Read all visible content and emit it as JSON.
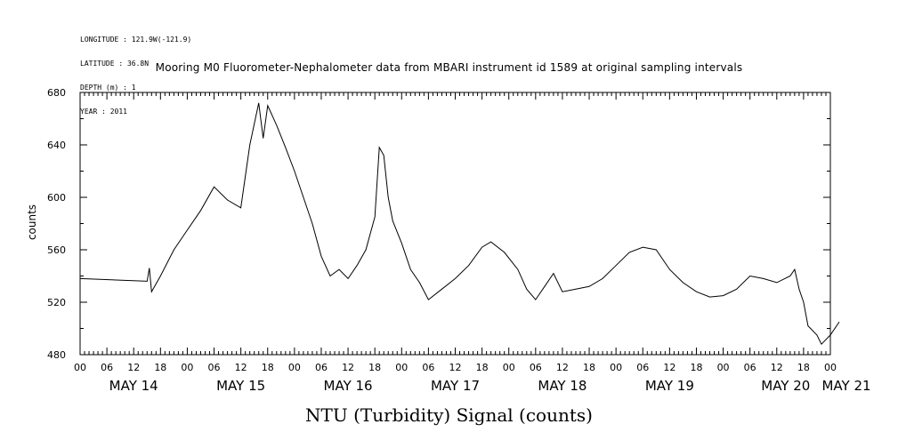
{
  "metadata": {
    "longitude": "LONGITUDE : 121.9W(-121.9)",
    "latitude": "LATITUDE : 36.8N",
    "depth": "DEPTH (m) : 1",
    "year": "YEAR : 2011"
  },
  "footer_label": "NTU (Turbidity) Signal (counts)",
  "chart_data": {
    "type": "line",
    "title": "Mooring M0 Fluorometer-Nephalometer data from MBARI instrument id 1589 at original sampling intervals",
    "xlabel": "",
    "ylabel": "counts",
    "ylim": [
      480,
      680
    ],
    "xlim": [
      "2011-05-14 00:00",
      "2011-05-21 00:00"
    ],
    "y_ticks": [
      "480",
      "520",
      "560",
      "600",
      "640",
      "680"
    ],
    "x_hour_ticks": [
      "00",
      "06",
      "12",
      "18",
      "00",
      "06",
      "12",
      "18",
      "00",
      "06",
      "12",
      "18",
      "00",
      "06",
      "12",
      "18",
      "00",
      "06",
      "12",
      "18",
      "00",
      "06",
      "12",
      "18",
      "00",
      "06",
      "12",
      "18",
      "00"
    ],
    "x_day_labels": [
      "MAY 14",
      "MAY 15",
      "MAY 16",
      "MAY 17",
      "MAY 18",
      "MAY 19",
      "MAY 20",
      "MAY 21"
    ],
    "grid": false,
    "series": [
      {
        "color": "#000000",
        "points": [
          [
            "2011-05-14 00:00",
            538
          ],
          [
            "2011-05-14 15:00",
            536
          ],
          [
            "2011-05-14 15:30",
            546
          ],
          [
            "2011-05-14 16:00",
            528
          ],
          [
            "2011-05-14 18:00",
            540
          ],
          [
            "2011-05-14 21:00",
            560
          ],
          [
            "2011-05-15 00:00",
            575
          ],
          [
            "2011-05-15 03:00",
            590
          ],
          [
            "2011-05-15 06:00",
            608
          ],
          [
            "2011-05-15 09:00",
            598
          ],
          [
            "2011-05-15 12:00",
            592
          ],
          [
            "2011-05-15 14:00",
            640
          ],
          [
            "2011-05-15 16:00",
            672
          ],
          [
            "2011-05-15 17:00",
            645
          ],
          [
            "2011-05-15 18:00",
            670
          ],
          [
            "2011-05-15 20:00",
            655
          ],
          [
            "2011-05-15 22:00",
            638
          ],
          [
            "2011-05-16 00:00",
            620
          ],
          [
            "2011-05-16 02:00",
            600
          ],
          [
            "2011-05-16 04:00",
            580
          ],
          [
            "2011-05-16 06:00",
            555
          ],
          [
            "2011-05-16 08:00",
            540
          ],
          [
            "2011-05-16 10:00",
            545
          ],
          [
            "2011-05-16 12:00",
            538
          ],
          [
            "2011-05-16 14:00",
            548
          ],
          [
            "2011-05-16 16:00",
            560
          ],
          [
            "2011-05-16 18:00",
            585
          ],
          [
            "2011-05-16 19:00",
            638
          ],
          [
            "2011-05-16 20:00",
            632
          ],
          [
            "2011-05-16 21:00",
            600
          ],
          [
            "2011-05-16 22:00",
            582
          ],
          [
            "2011-05-17 00:00",
            565
          ],
          [
            "2011-05-17 02:00",
            545
          ],
          [
            "2011-05-17 04:00",
            535
          ],
          [
            "2011-05-17 06:00",
            522
          ],
          [
            "2011-05-17 09:00",
            530
          ],
          [
            "2011-05-17 12:00",
            538
          ],
          [
            "2011-05-17 15:00",
            548
          ],
          [
            "2011-05-17 18:00",
            562
          ],
          [
            "2011-05-17 20:00",
            566
          ],
          [
            "2011-05-17 23:00",
            558
          ],
          [
            "2011-05-18 02:00",
            545
          ],
          [
            "2011-05-18 04:00",
            530
          ],
          [
            "2011-05-18 06:00",
            522
          ],
          [
            "2011-05-18 08:00",
            532
          ],
          [
            "2011-05-18 10:00",
            542
          ],
          [
            "2011-05-18 12:00",
            528
          ],
          [
            "2011-05-18 15:00",
            530
          ],
          [
            "2011-05-18 18:00",
            532
          ],
          [
            "2011-05-18 21:00",
            538
          ],
          [
            "2011-05-19 00:00",
            548
          ],
          [
            "2011-05-19 03:00",
            558
          ],
          [
            "2011-05-19 06:00",
            562
          ],
          [
            "2011-05-19 09:00",
            560
          ],
          [
            "2011-05-19 12:00",
            545
          ],
          [
            "2011-05-19 15:00",
            535
          ],
          [
            "2011-05-19 18:00",
            528
          ],
          [
            "2011-05-19 21:00",
            524
          ],
          [
            "2011-05-20 00:00",
            525
          ],
          [
            "2011-05-20 03:00",
            530
          ],
          [
            "2011-05-20 06:00",
            540
          ],
          [
            "2011-05-20 09:00",
            538
          ],
          [
            "2011-05-20 12:00",
            535
          ],
          [
            "2011-05-20 15:00",
            540
          ],
          [
            "2011-05-20 16:00",
            545
          ],
          [
            "2011-05-20 17:00",
            530
          ],
          [
            "2011-05-20 18:00",
            520
          ],
          [
            "2011-05-20 19:00",
            502
          ],
          [
            "2011-05-20 21:00",
            495
          ],
          [
            "2011-05-20 22:00",
            488
          ],
          [
            "2011-05-21 00:00",
            495
          ],
          [
            "2011-05-21 02:00",
            505
          ]
        ]
      }
    ]
  }
}
